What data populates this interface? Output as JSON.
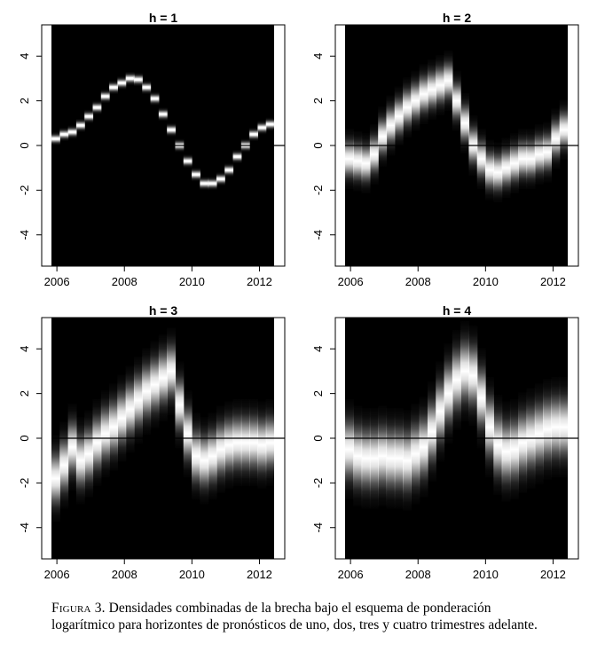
{
  "chart_data": [
    {
      "type": "heatmap",
      "title": "h = 1",
      "x_ticks": [
        "2006",
        "2008",
        "2010",
        "2012"
      ],
      "y_ticks": [
        "4",
        "2",
        "0",
        "-2",
        "-4"
      ],
      "xlim": [
        2005.55,
        2012.75
      ],
      "ylim": [
        -5.4,
        5.4
      ],
      "zero_line": true,
      "spread": 0.1,
      "x": [
        2005.75,
        2006.0,
        2006.25,
        2006.5,
        2006.75,
        2007.0,
        2007.25,
        2007.5,
        2007.75,
        2008.0,
        2008.25,
        2008.5,
        2008.75,
        2009.0,
        2009.25,
        2009.5,
        2009.75,
        2010.0,
        2010.25,
        2010.5,
        2010.75,
        2011.0,
        2011.25,
        2011.5,
        2011.75,
        2012.0,
        2012.25
      ],
      "center": [
        0.3,
        0.5,
        0.6,
        0.9,
        1.3,
        1.7,
        2.2,
        2.6,
        2.8,
        3.0,
        2.95,
        2.6,
        2.1,
        1.4,
        0.7,
        0.0,
        -0.7,
        -1.3,
        -1.7,
        -1.7,
        -1.5,
        -1.1,
        -0.5,
        0.0,
        0.5,
        0.8,
        0.95
      ]
    },
    {
      "type": "heatmap",
      "title": "h = 2",
      "x_ticks": [
        "2006",
        "2008",
        "2010",
        "2012"
      ],
      "y_ticks": [
        "4",
        "2",
        "0",
        "-2",
        "-4"
      ],
      "xlim": [
        2005.55,
        2012.75
      ],
      "ylim": [
        -5.4,
        5.4
      ],
      "zero_line": true,
      "spread": 0.45,
      "x": [
        2005.75,
        2006.0,
        2006.25,
        2006.5,
        2006.75,
        2007.0,
        2007.25,
        2007.5,
        2007.75,
        2008.0,
        2008.25,
        2008.5,
        2008.75,
        2009.0,
        2009.25,
        2009.5,
        2009.75,
        2010.0,
        2010.25,
        2010.5,
        2010.75,
        2011.0,
        2011.25,
        2011.5,
        2011.75,
        2012.0,
        2012.25
      ],
      "center": [
        -0.6,
        -0.7,
        -0.8,
        -0.4,
        0.4,
        0.9,
        1.3,
        1.7,
        2.0,
        2.3,
        2.5,
        2.7,
        2.9,
        2.0,
        1.0,
        0.0,
        -0.6,
        -1.1,
        -1.2,
        -1.0,
        -0.8,
        -0.6,
        -0.6,
        -0.4,
        -0.3,
        0.3,
        0.7
      ]
    },
    {
      "type": "heatmap",
      "title": "h = 3",
      "x_ticks": [
        "2006",
        "2008",
        "2010",
        "2012"
      ],
      "y_ticks": [
        "4",
        "2",
        "0",
        "-2",
        "-4"
      ],
      "xlim": [
        2005.55,
        2012.75
      ],
      "ylim": [
        -5.4,
        5.4
      ],
      "zero_line": true,
      "spread": 0.65,
      "x": [
        2005.75,
        2006.0,
        2006.25,
        2006.5,
        2006.75,
        2007.0,
        2007.25,
        2007.5,
        2007.75,
        2008.0,
        2008.25,
        2008.5,
        2008.75,
        2009.0,
        2009.25,
        2009.5,
        2009.75,
        2010.0,
        2010.25,
        2010.5,
        2010.75,
        2011.0,
        2011.25,
        2011.5,
        2011.75,
        2012.0,
        2012.25
      ],
      "center": [
        -1.8,
        -1.2,
        -0.4,
        -1.0,
        -0.7,
        -0.2,
        0.2,
        0.5,
        0.9,
        1.3,
        1.7,
        2.1,
        2.4,
        2.7,
        3.0,
        1.5,
        0.2,
        -0.8,
        -1.0,
        -0.8,
        -0.5,
        -0.3,
        -0.2,
        -0.2,
        -0.2,
        -0.3,
        -0.2
      ]
    },
    {
      "type": "heatmap",
      "title": "h = 4",
      "x_ticks": [
        "2006",
        "2008",
        "2010",
        "2012"
      ],
      "y_ticks": [
        "4",
        "2",
        "0",
        "-2",
        "-4"
      ],
      "xlim": [
        2005.55,
        2012.75
      ],
      "ylim": [
        -5.4,
        5.4
      ],
      "zero_line": true,
      "spread": 0.75,
      "x": [
        2005.75,
        2006.0,
        2006.25,
        2006.5,
        2006.75,
        2007.0,
        2007.25,
        2007.5,
        2007.75,
        2008.0,
        2008.25,
        2008.5,
        2008.75,
        2009.0,
        2009.25,
        2009.5,
        2009.75,
        2010.0,
        2010.25,
        2010.5,
        2010.75,
        2011.0,
        2011.25,
        2011.5,
        2011.75,
        2012.0,
        2012.25
      ],
      "center": [
        -0.5,
        -0.8,
        -0.9,
        -0.9,
        -0.8,
        -0.9,
        -0.9,
        -1.0,
        -0.7,
        -0.4,
        0.3,
        1.2,
        2.0,
        2.6,
        3.0,
        2.8,
        1.8,
        0.5,
        -0.3,
        -0.6,
        -0.5,
        -0.2,
        0.0,
        0.2,
        0.4,
        0.5,
        0.5
      ]
    }
  ],
  "caption": {
    "label": "Figura 3.",
    "text": "Densidades combinadas de la brecha bajo el esquema de ponderación logarítmico para horizontes de pronósticos de uno, dos, tres y cuatro trimestres adelante."
  }
}
